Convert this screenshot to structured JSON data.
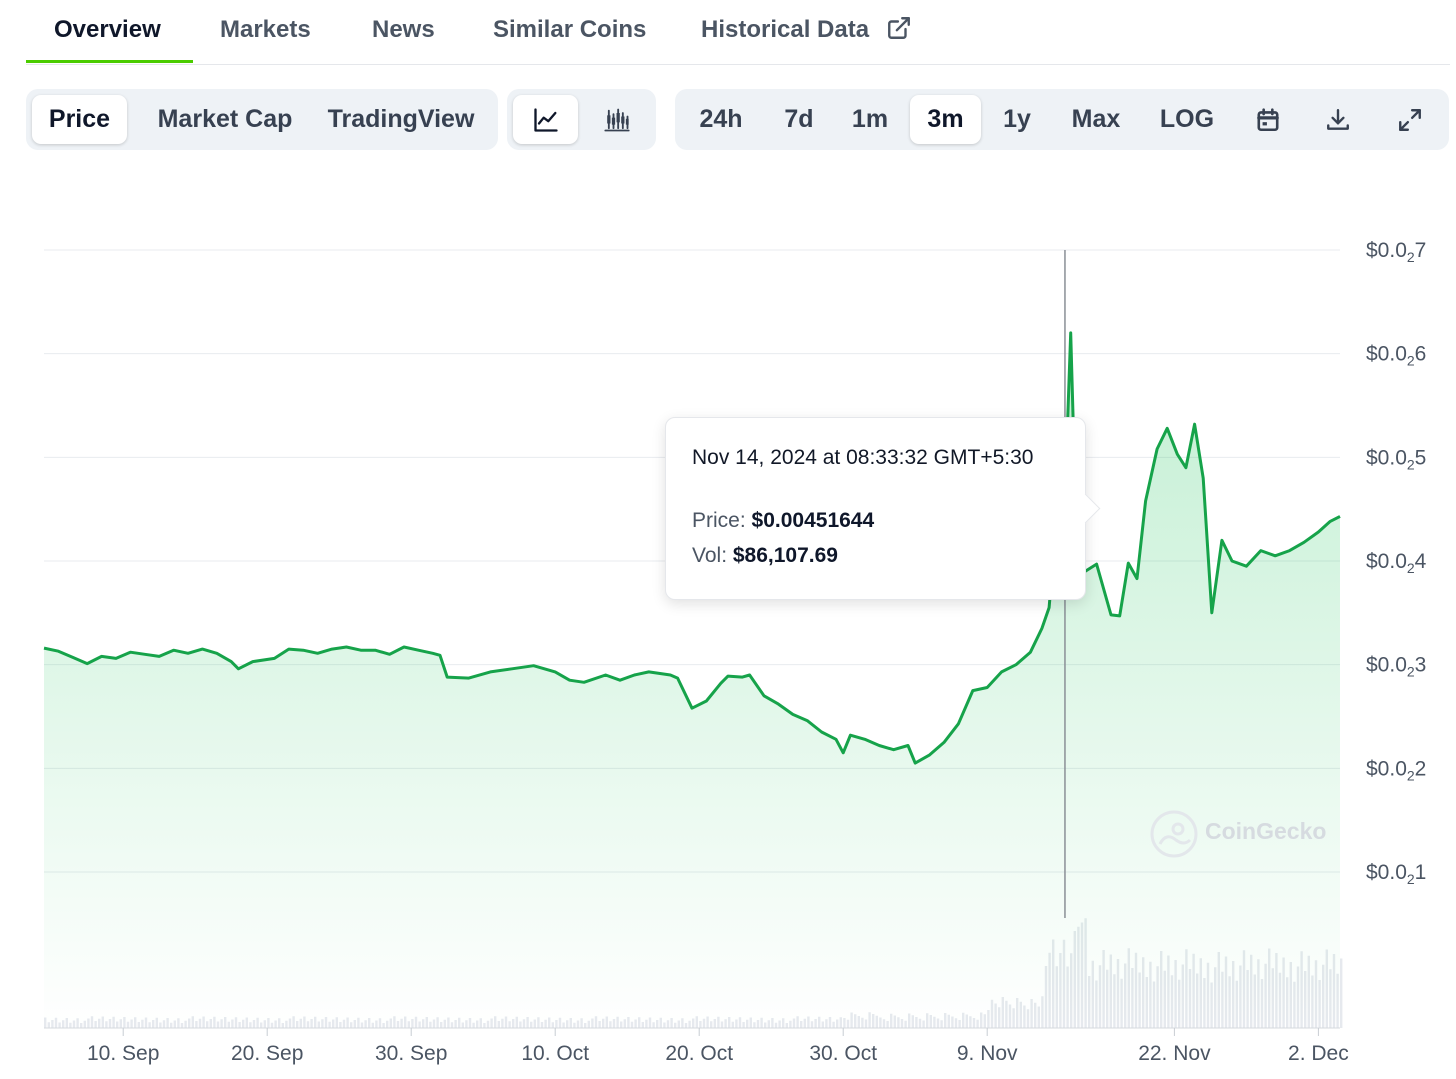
{
  "tabs": [
    {
      "label": "Overview",
      "active": true
    },
    {
      "label": "Markets"
    },
    {
      "label": "News"
    },
    {
      "label": "Similar Coins"
    },
    {
      "label": "Historical Data",
      "icon": "external-link-icon"
    }
  ],
  "toolbar": {
    "chart_mode": [
      "Price",
      "Market Cap",
      "TradingView"
    ],
    "chart_mode_selected": "Price",
    "chart_style_icons": [
      "line-chart-icon",
      "candlestick-chart-icon"
    ],
    "chart_style_selected": "line-chart-icon",
    "ranges": [
      "24h",
      "7d",
      "1m",
      "3m",
      "1y",
      "Max",
      "LOG"
    ],
    "range_selected": "3m",
    "action_icons": [
      "calendar-icon",
      "download-icon",
      "expand-icon"
    ]
  },
  "tooltip": {
    "date": "Nov 14, 2024 at 08:33:32 GMT+5:30",
    "price_label": "Price:",
    "price_value": "$0.00451644",
    "vol_label": "Vol:",
    "vol_value": "$86,107.69"
  },
  "watermark": "CoinGecko",
  "colors": {
    "line": "#16a34a",
    "accent": "#4bcc00",
    "volume": "#e6e9ee"
  },
  "chart_data": {
    "type": "line",
    "y_tick_labels": [
      {
        "prefix": "$0.0",
        "sub": "2",
        "digit": "7"
      },
      {
        "prefix": "$0.0",
        "sub": "2",
        "digit": "6"
      },
      {
        "prefix": "$0.0",
        "sub": "2",
        "digit": "5"
      },
      {
        "prefix": "$0.0",
        "sub": "2",
        "digit": "4"
      },
      {
        "prefix": "$0.0",
        "sub": "2",
        "digit": "3"
      },
      {
        "prefix": "$0.0",
        "sub": "2",
        "digit": "2"
      },
      {
        "prefix": "$0.0",
        "sub": "2",
        "digit": "1"
      }
    ],
    "ylim": [
      0.001,
      0.007
    ],
    "x_tick_labels": [
      "10. Sep",
      "20. Sep",
      "30. Sep",
      "10. Oct",
      "20. Oct",
      "30. Oct",
      "9. Nov",
      "22. Nov",
      "2. Dec"
    ],
    "x_tick_days": [
      10,
      20,
      30,
      40,
      50,
      60,
      70,
      83,
      93
    ],
    "xlim_days": [
      4.5,
      94.5
    ],
    "series": [
      {
        "points": [
          [
            4.5,
            0.00316
          ],
          [
            5.5,
            0.00313
          ],
          [
            6.5,
            0.00307
          ],
          [
            7.5,
            0.00301
          ],
          [
            8.5,
            0.00308
          ],
          [
            9.5,
            0.00306
          ],
          [
            10.5,
            0.00312
          ],
          [
            11.5,
            0.0031
          ],
          [
            12.5,
            0.00308
          ],
          [
            13.5,
            0.00314
          ],
          [
            14.5,
            0.00311
          ],
          [
            15.5,
            0.00315
          ],
          [
            16.5,
            0.00311
          ],
          [
            17.5,
            0.00303
          ],
          [
            18,
            0.00296
          ],
          [
            19,
            0.00303
          ],
          [
            20.5,
            0.00306
          ],
          [
            21.5,
            0.00315
          ],
          [
            22.5,
            0.00314
          ],
          [
            23.5,
            0.00311
          ],
          [
            24.5,
            0.00315
          ],
          [
            25.5,
            0.00317
          ],
          [
            26.5,
            0.00314
          ],
          [
            27.5,
            0.00314
          ],
          [
            28.5,
            0.0031
          ],
          [
            29.5,
            0.00317
          ],
          [
            30.5,
            0.00314
          ],
          [
            31.5,
            0.00311
          ],
          [
            32,
            0.00309
          ],
          [
            32.5,
            0.00288
          ],
          [
            34,
            0.00287
          ],
          [
            35.5,
            0.00293
          ],
          [
            37,
            0.00296
          ],
          [
            38.5,
            0.00299
          ],
          [
            40,
            0.00293
          ],
          [
            41,
            0.00285
          ],
          [
            42,
            0.00283
          ],
          [
            43.5,
            0.0029
          ],
          [
            44.5,
            0.00285
          ],
          [
            45.5,
            0.0029
          ],
          [
            46.5,
            0.00293
          ],
          [
            48,
            0.0029
          ],
          [
            48.5,
            0.00287
          ],
          [
            49.5,
            0.00258
          ],
          [
            50.5,
            0.00265
          ],
          [
            51.5,
            0.00282
          ],
          [
            52,
            0.00289
          ],
          [
            53,
            0.00288
          ],
          [
            53.5,
            0.0029
          ],
          [
            54.5,
            0.0027
          ],
          [
            55.5,
            0.00262
          ],
          [
            56.5,
            0.00252
          ],
          [
            57.5,
            0.00246
          ],
          [
            58.5,
            0.00235
          ],
          [
            59.5,
            0.00228
          ],
          [
            60,
            0.00215
          ],
          [
            60.5,
            0.00232
          ],
          [
            61.5,
            0.00228
          ],
          [
            62.5,
            0.00222
          ],
          [
            63.5,
            0.00218
          ],
          [
            64.5,
            0.00222
          ],
          [
            65,
            0.00205
          ],
          [
            66,
            0.00213
          ],
          [
            67,
            0.00225
          ],
          [
            68,
            0.00243
          ],
          [
            69,
            0.00275
          ],
          [
            70,
            0.00278
          ],
          [
            71,
            0.00293
          ],
          [
            72,
            0.003
          ],
          [
            73,
            0.00312
          ],
          [
            73.8,
            0.00335
          ],
          [
            74.3,
            0.00355
          ],
          [
            74.8,
            0.00438
          ],
          [
            75.4,
            0.00462
          ],
          [
            75.8,
            0.0062
          ],
          [
            76.2,
            0.0042
          ],
          [
            76.8,
            0.0039
          ],
          [
            77.6,
            0.00397
          ],
          [
            78.6,
            0.00348
          ],
          [
            79.2,
            0.00347
          ],
          [
            79.8,
            0.00398
          ],
          [
            80.4,
            0.00383
          ],
          [
            81,
            0.00458
          ],
          [
            81.8,
            0.00508
          ],
          [
            82.5,
            0.00528
          ],
          [
            83.2,
            0.00503
          ],
          [
            83.8,
            0.0049
          ],
          [
            84.4,
            0.00532
          ],
          [
            85,
            0.0048
          ],
          [
            85.6,
            0.0035
          ],
          [
            86.3,
            0.0042
          ],
          [
            87,
            0.004
          ],
          [
            88,
            0.00395
          ],
          [
            89,
            0.0041
          ],
          [
            90,
            0.00405
          ],
          [
            91,
            0.0041
          ],
          [
            92,
            0.00418
          ],
          [
            93,
            0.00428
          ],
          [
            93.8,
            0.00438
          ],
          [
            94.5,
            0.00443
          ]
        ]
      }
    ],
    "volume_range_days": [
      4.5,
      94.5
    ],
    "crosshair_day": 75.4
  }
}
